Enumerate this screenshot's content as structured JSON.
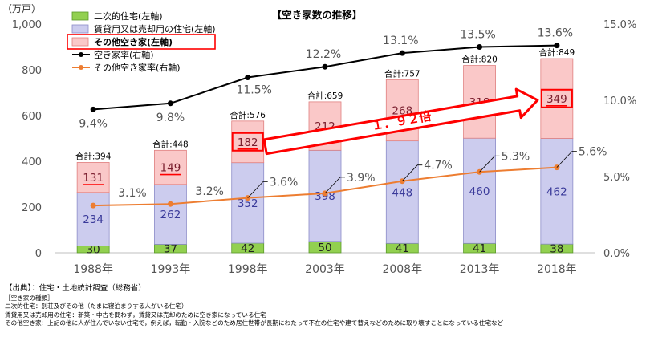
{
  "chart_data": {
    "type": "bar",
    "title": "【空き家数の推移】",
    "y_unit_label": "（万戸）",
    "ylim": [
      0,
      1000
    ],
    "y_ticks": [
      "0",
      "200",
      "400",
      "600",
      "800",
      "1,000"
    ],
    "y2lim": [
      0,
      15
    ],
    "y2_ticks": [
      "0.0%",
      "5.0%",
      "10.0%",
      "15.0%"
    ],
    "categories": [
      "1988年",
      "1993年",
      "1998年",
      "2003年",
      "2008年",
      "2013年",
      "2018年"
    ],
    "total_prefix": "合計:",
    "totals": [
      "394",
      "448",
      "576",
      "659",
      "757",
      "820",
      "849"
    ],
    "series": [
      {
        "name": "二次的住宅(左軸)",
        "type": "bar",
        "color": "#92d050",
        "border": "#5a9a2a",
        "label_color": "#1f1f1f",
        "values": [
          30,
          37,
          42,
          50,
          41,
          41,
          38
        ]
      },
      {
        "name": "賃貸用又は売却用の住宅(左軸)",
        "type": "bar",
        "color": "#ccccee",
        "border": "#8c8cc8",
        "label_color": "#3a3a9a",
        "values": [
          234,
          262,
          352,
          398,
          448,
          460,
          462
        ]
      },
      {
        "name": "その他空き家(左軸)",
        "type": "bar",
        "color": "#fac8c8",
        "border": "#e08080",
        "label_color": "#7a1e2e",
        "values": [
          131,
          149,
          182,
          212,
          268,
          318,
          349
        ]
      },
      {
        "name": "空き家率(右軸)",
        "type": "line",
        "axis": "right",
        "color": "#000000",
        "values": [
          9.4,
          9.8,
          11.5,
          12.2,
          13.1,
          13.5,
          13.6
        ],
        "labels": [
          "9.4%",
          "9.8%",
          "11.5%",
          "12.2%",
          "13.1%",
          "13.5%",
          "13.6%"
        ]
      },
      {
        "name": "その他空き家率(右軸)",
        "type": "line",
        "axis": "right",
        "color": "#ed7d31",
        "values": [
          3.1,
          3.2,
          3.6,
          3.9,
          4.7,
          5.3,
          5.6
        ],
        "labels": [
          "3.1%",
          "3.2%",
          "3.6%",
          "3.9%",
          "4.7%",
          "5.3%",
          "5.6%"
        ]
      }
    ],
    "annotation": "１．９２倍",
    "accent_color": "#ff0000",
    "grid": false,
    "legend_position": "top-left"
  },
  "notes": {
    "source": "【出典】：住宅・土地統計調査（総務省）",
    "heading": "［空き家の種類］",
    "lines": [
      "二次的住宅：別荘及びその他（たまに寝泊まりする人がいる住宅）",
      "賃貸用又は売却用の住宅：新築・中古を問わず，賃貸又は売却のために空き家になっている住宅",
      "その他空き家：上記の他に人が住んでいない住宅で，例えば，転勤・入院などのため居住世帯が長期にわたって不在の住宅や建て替えなどのために取り壊すことになっている住宅など"
    ]
  }
}
